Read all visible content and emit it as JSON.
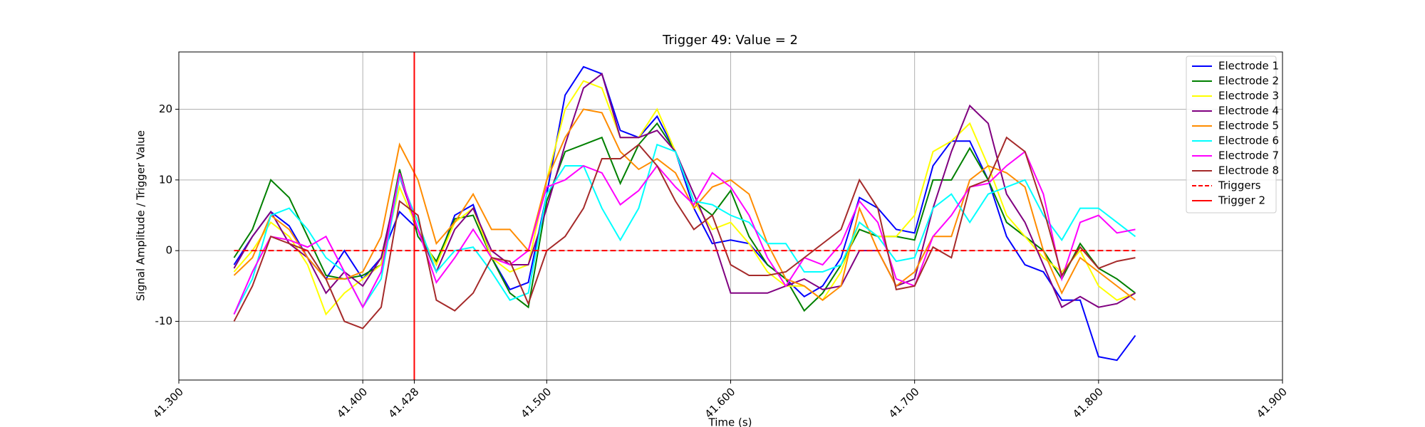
{
  "chart_data": {
    "type": "line",
    "title": "Trigger 49: Value = 2",
    "xlabel": "Time (s)",
    "ylabel": "Signal Amplitude / Trigger Value",
    "x": [
      41.33,
      41.34,
      41.35,
      41.36,
      41.37,
      41.38,
      41.39,
      41.4,
      41.41,
      41.42,
      41.43,
      41.44,
      41.45,
      41.46,
      41.47,
      41.48,
      41.49,
      41.5,
      41.51,
      41.52,
      41.53,
      41.54,
      41.55,
      41.56,
      41.57,
      41.58,
      41.59,
      41.6,
      41.61,
      41.62,
      41.63,
      41.64,
      41.65,
      41.66,
      41.67,
      41.68,
      41.69,
      41.7,
      41.71,
      41.72,
      41.73,
      41.74,
      41.75,
      41.76,
      41.77,
      41.78,
      41.79,
      41.8,
      41.81,
      41.82
    ],
    "series": [
      {
        "name": "Electrode 1",
        "color": "#0000ff",
        "values": [
          -2,
          2,
          5.5,
          3.5,
          -1,
          -4,
          0,
          -4,
          -1,
          5.5,
          3,
          -2,
          5,
          6.5,
          -1,
          -5.5,
          -4.5,
          8,
          22,
          26,
          25,
          17,
          16,
          19,
          14,
          6,
          1,
          1.5,
          1,
          -2,
          -4,
          -6.5,
          -5,
          -1,
          7.5,
          6,
          3,
          2.5,
          12,
          15.5,
          15.5,
          10,
          2,
          -2,
          -3,
          -7,
          -7,
          -15,
          -15.5,
          -12
        ]
      },
      {
        "name": "Electrode 2",
        "color": "#008000",
        "values": [
          -1,
          3,
          10,
          7.5,
          2,
          -3.5,
          -4,
          -3.5,
          -2,
          11.5,
          2,
          -1.5,
          4.5,
          5,
          -1,
          -6,
          -8,
          7,
          14,
          15,
          16,
          9.5,
          15,
          18,
          14,
          7,
          5,
          8.5,
          2,
          -2,
          -4,
          -8.5,
          -6,
          -2,
          3,
          2,
          2,
          1.5,
          10,
          10,
          14.5,
          10,
          4,
          2,
          0,
          -4,
          1,
          -2.5,
          -4,
          -6
        ]
      },
      {
        "name": "Electrode 3",
        "color": "#ffff00",
        "values": [
          -3,
          0,
          4,
          2,
          -2,
          -9,
          -6,
          -4,
          -2,
          9,
          3,
          -2,
          4,
          6,
          -1,
          -3,
          -2,
          10,
          20,
          24,
          23,
          16,
          16,
          20,
          14,
          7,
          3,
          4,
          1,
          -3,
          -5,
          -5,
          -7,
          -3,
          4,
          2,
          2,
          5,
          14,
          15.5,
          18,
          12,
          5,
          2,
          -1,
          -3,
          0,
          -5,
          -7,
          -6
        ]
      },
      {
        "name": "Electrode 4",
        "color": "#800080",
        "values": [
          -2.5,
          2,
          5.5,
          1,
          -1,
          -6,
          -3,
          -5,
          -1,
          10.5,
          3,
          -3,
          3,
          6,
          0,
          -2,
          -2,
          6,
          15,
          23,
          25,
          16,
          16,
          17,
          14,
          8,
          2,
          -6,
          -6,
          -6,
          -5,
          -4,
          -5.5,
          -5,
          0,
          0,
          -5,
          -4,
          6,
          14,
          20.5,
          18,
          8,
          4,
          -2,
          -8,
          -6.5,
          -8,
          -7.5,
          -6
        ]
      },
      {
        "name": "Electrode 5",
        "color": "#ff8c00",
        "values": [
          -3.5,
          -1,
          5,
          3,
          -1,
          -4,
          -4,
          -3,
          2,
          15,
          10,
          1,
          4,
          8,
          3,
          3,
          0,
          10,
          16,
          20,
          19.5,
          14,
          11.5,
          13,
          11,
          6,
          9,
          10,
          8,
          1,
          -4,
          -5,
          -7,
          -5,
          6,
          0,
          -5,
          -3,
          2,
          2,
          10,
          12,
          11,
          9,
          0,
          -6,
          -1,
          -3,
          -5,
          -7
        ]
      },
      {
        "name": "Electrode 6",
        "color": "#00ffff",
        "values": [
          -9,
          -4,
          5,
          6,
          3,
          -1,
          -3,
          -8,
          -4,
          10.5,
          4,
          -3,
          0,
          0.5,
          -3,
          -7,
          -6,
          8,
          12,
          12,
          6,
          1.5,
          6,
          15,
          14,
          7,
          6.5,
          5,
          4,
          1,
          1,
          -3,
          -3,
          -2,
          4,
          2,
          -1.5,
          -1,
          6,
          8,
          4,
          8,
          9,
          10,
          5,
          1.5,
          6,
          6,
          4,
          2
        ]
      },
      {
        "name": "Electrode 7",
        "color": "#ff00ff",
        "values": [
          -9,
          -3,
          2,
          1.5,
          0.5,
          2,
          -3,
          -8,
          -3,
          11,
          3,
          -4.5,
          -1,
          3,
          -1,
          -2,
          0,
          9,
          10,
          12,
          11,
          6.5,
          8.5,
          12,
          9,
          6.5,
          11,
          9,
          5,
          -1,
          -5,
          -1,
          -2,
          1,
          7,
          4,
          -4,
          -5,
          2,
          5,
          9,
          9.5,
          12,
          14,
          8,
          -4,
          4,
          5,
          2.5,
          3
        ]
      },
      {
        "name": "Electrode 8",
        "color": "#a52a2a",
        "values": [
          -10,
          -5,
          2,
          1,
          0,
          -4,
          -10,
          -11,
          -8,
          7,
          5,
          -7,
          -8.5,
          -6,
          -1,
          -1.5,
          -7.5,
          0,
          2,
          6,
          13,
          13,
          15,
          12,
          7,
          3,
          5,
          -2,
          -3.5,
          -3.5,
          -3,
          -1,
          1,
          3,
          10,
          6,
          -5.5,
          -5,
          0.5,
          -1,
          9,
          10,
          16,
          14,
          6,
          -3.5,
          0.5,
          -2.5,
          -1.5,
          -1
        ]
      },
      {
        "name": "Triggers",
        "color": "#ff0000",
        "style": "dashed",
        "values": [
          0,
          0,
          0,
          0,
          0,
          0,
          0,
          0,
          0,
          0,
          0,
          0,
          0,
          0,
          0,
          0,
          0,
          0,
          0,
          0,
          0,
          0,
          0,
          0,
          0,
          0,
          0,
          0,
          0,
          0,
          0,
          0,
          0,
          0,
          0,
          0,
          0,
          0,
          0,
          0,
          0,
          0,
          0,
          0,
          0,
          0,
          0,
          0,
          0,
          0
        ]
      }
    ],
    "vlines": [
      {
        "name": "Trigger 2",
        "color": "#ff0000",
        "x": 41.428
      }
    ],
    "xlim": [
      41.3,
      41.9
    ],
    "ylim": [
      -18.3,
      28.1
    ],
    "xticks": [
      {
        "value": 41.3,
        "label": "41.300"
      },
      {
        "value": 41.4,
        "label": "41.400"
      },
      {
        "value": 41.428,
        "label": "41.428"
      },
      {
        "value": 41.5,
        "label": "41.500"
      },
      {
        "value": 41.6,
        "label": "41.600"
      },
      {
        "value": 41.7,
        "label": "41.700"
      },
      {
        "value": 41.8,
        "label": "41.800"
      },
      {
        "value": 41.9,
        "label": "41.900"
      }
    ],
    "yticks": [
      -10,
      0,
      10,
      20
    ],
    "grid": true,
    "legend": "upper right"
  }
}
